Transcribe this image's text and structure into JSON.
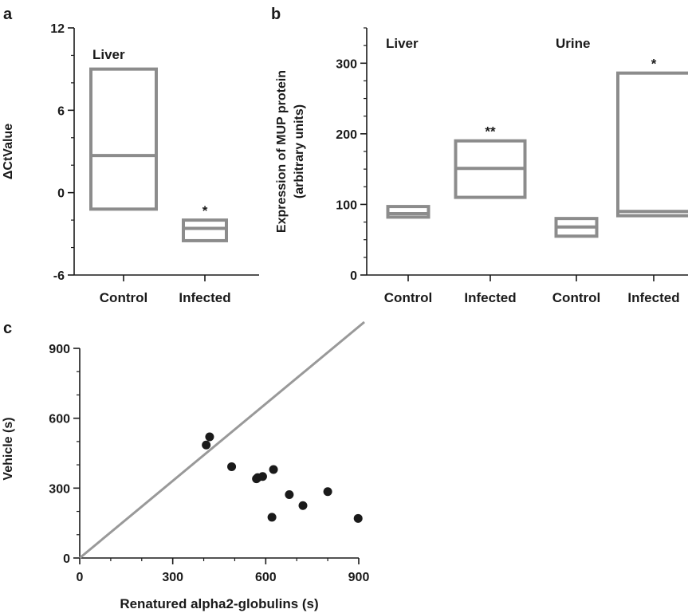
{
  "colors": {
    "box": "#8c8c8c",
    "axis": "#1a1a1a",
    "point": "#1a1a1a",
    "identity_line": "#999999"
  },
  "chart_data": [
    {
      "panel": "a",
      "type": "box",
      "ylabel": "ΔCtValue",
      "ylim": [
        -6,
        12
      ],
      "yticks": [
        -6,
        0,
        6,
        12
      ],
      "group_label": "Liver",
      "categories": [
        "Control",
        "Infected"
      ],
      "boxes": [
        {
          "low": -1.2,
          "median": 2.7,
          "high": 9.0,
          "annotation": ""
        },
        {
          "low": -3.5,
          "median": -2.6,
          "high": -2.0,
          "annotation": "*"
        }
      ]
    },
    {
      "panel": "b",
      "type": "box",
      "ylabel": [
        "Expression of MUP protein",
        "(arbitrary units)"
      ],
      "ylim": [
        0,
        350
      ],
      "yticks": [
        0,
        100,
        200,
        300
      ],
      "groups": [
        {
          "label": "Liver",
          "categories": [
            "Control",
            "Infected"
          ],
          "boxes": [
            {
              "low": 82,
              "median": 87,
              "high": 97,
              "annotation": ""
            },
            {
              "low": 110,
              "median": 151,
              "high": 190,
              "annotation": "**"
            }
          ]
        },
        {
          "label": "Urine",
          "categories": [
            "Control",
            "Infected"
          ],
          "boxes": [
            {
              "low": 55,
              "median": 68,
              "high": 80,
              "annotation": ""
            },
            {
              "low": 84,
              "median": 90,
              "high": 286,
              "annotation": "*"
            }
          ]
        }
      ]
    },
    {
      "panel": "c",
      "type": "scatter",
      "xlabel": "Renatured alpha2-globulins (s)",
      "ylabel": "Vehicle (s)",
      "xlim": [
        0,
        900
      ],
      "ylim": [
        0,
        900
      ],
      "xticks": [
        0,
        300,
        600,
        900
      ],
      "yticks": [
        0,
        300,
        600,
        900
      ],
      "identity_line": true,
      "points": [
        {
          "x": 408,
          "y": 485
        },
        {
          "x": 419,
          "y": 520
        },
        {
          "x": 490,
          "y": 392
        },
        {
          "x": 570,
          "y": 340
        },
        {
          "x": 574,
          "y": 345
        },
        {
          "x": 590,
          "y": 350
        },
        {
          "x": 625,
          "y": 380
        },
        {
          "x": 620,
          "y": 175
        },
        {
          "x": 676,
          "y": 272
        },
        {
          "x": 720,
          "y": 225
        },
        {
          "x": 800,
          "y": 285
        },
        {
          "x": 898,
          "y": 170
        }
      ]
    }
  ]
}
